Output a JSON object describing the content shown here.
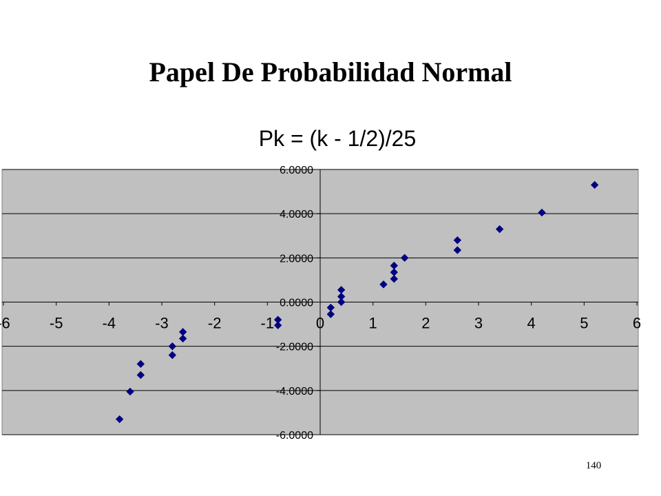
{
  "slide": {
    "title": "Papel De Probabilidad Normal",
    "page_number": "140"
  },
  "chart_data": {
    "type": "scatter",
    "title": "Pk = (k - 1/2)/25",
    "color": "#000080",
    "grid": true,
    "x": [
      -3.8,
      -3.6,
      -3.4,
      -3.4,
      -2.8,
      -2.8,
      -2.6,
      -2.6,
      -0.8,
      -0.8,
      0.2,
      0.2,
      0.4,
      0.4,
      0.4,
      1.2,
      1.4,
      1.4,
      1.4,
      1.6,
      2.6,
      2.6,
      3.4,
      4.2,
      5.2
    ],
    "values": [
      -5.3,
      -4.05,
      -3.3,
      -2.8,
      -2.4,
      -2.0,
      -1.65,
      -1.35,
      -1.05,
      -0.8,
      -0.55,
      -0.25,
      0,
      0.25,
      0.55,
      0.8,
      1.05,
      1.35,
      1.65,
      2.0,
      2.35,
      2.8,
      3.3,
      4.05,
      5.3
    ],
    "xlim": [
      -6,
      6
    ],
    "xticks": [
      -6,
      -5,
      -4,
      -3,
      -2,
      -1,
      0,
      1,
      2,
      3,
      4,
      5,
      6
    ],
    "ylim": [
      -6,
      6
    ],
    "yticks": [
      {
        "value": -6,
        "label": "-6.0000"
      },
      {
        "value": -4,
        "label": "-4.0000"
      },
      {
        "value": -2,
        "label": "-2.0000"
      },
      {
        "value": 0,
        "label": "0.0000"
      },
      {
        "value": 2,
        "label": "2.0000"
      },
      {
        "value": 4,
        "label": "4.0000"
      },
      {
        "value": 6,
        "label": "6.0000"
      }
    ]
  }
}
